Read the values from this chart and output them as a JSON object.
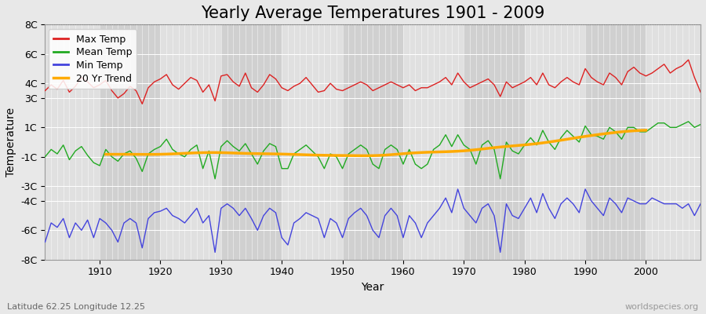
{
  "title": "Yearly Average Temperatures 1901 - 2009",
  "xlabel": "Year",
  "ylabel": "Temperature",
  "subtitle_left": "Latitude 62.25 Longitude 12.25",
  "subtitle_right": "worldspecies.org",
  "years": [
    1901,
    1902,
    1903,
    1904,
    1905,
    1906,
    1907,
    1908,
    1909,
    1910,
    1911,
    1912,
    1913,
    1914,
    1915,
    1916,
    1917,
    1918,
    1919,
    1920,
    1921,
    1922,
    1923,
    1924,
    1925,
    1926,
    1927,
    1928,
    1929,
    1930,
    1931,
    1932,
    1933,
    1934,
    1935,
    1936,
    1937,
    1938,
    1939,
    1940,
    1941,
    1942,
    1943,
    1944,
    1945,
    1946,
    1947,
    1948,
    1949,
    1950,
    1951,
    1952,
    1953,
    1954,
    1955,
    1956,
    1957,
    1958,
    1959,
    1960,
    1961,
    1962,
    1963,
    1964,
    1965,
    1966,
    1967,
    1968,
    1969,
    1970,
    1971,
    1972,
    1973,
    1974,
    1975,
    1976,
    1977,
    1978,
    1979,
    1980,
    1981,
    1982,
    1983,
    1984,
    1985,
    1986,
    1987,
    1988,
    1989,
    1990,
    1991,
    1992,
    1993,
    1994,
    1995,
    1996,
    1997,
    1998,
    1999,
    2000,
    2001,
    2002,
    2003,
    2004,
    2005,
    2006,
    2007,
    2008,
    2009
  ],
  "max_temp": [
    3.5,
    3.9,
    3.6,
    4.2,
    3.4,
    3.8,
    4.4,
    4.1,
    3.7,
    3.9,
    4.2,
    3.5,
    3.0,
    3.3,
    3.8,
    3.5,
    2.6,
    3.7,
    4.1,
    4.3,
    4.6,
    3.9,
    3.6,
    4.0,
    4.4,
    4.2,
    3.4,
    3.9,
    2.8,
    4.5,
    4.6,
    4.1,
    3.8,
    4.7,
    3.7,
    3.4,
    3.9,
    4.6,
    4.3,
    3.7,
    3.5,
    3.8,
    4.0,
    4.4,
    3.9,
    3.4,
    3.5,
    4.0,
    3.6,
    3.5,
    3.7,
    3.9,
    4.1,
    3.9,
    3.5,
    3.7,
    3.9,
    4.1,
    3.9,
    3.7,
    3.9,
    3.5,
    3.7,
    3.7,
    3.9,
    4.1,
    4.4,
    3.9,
    4.7,
    4.1,
    3.7,
    3.9,
    4.1,
    4.3,
    3.9,
    3.1,
    4.1,
    3.7,
    3.9,
    4.1,
    4.4,
    3.9,
    4.7,
    3.9,
    3.7,
    4.1,
    4.4,
    4.1,
    3.9,
    5.0,
    4.4,
    4.1,
    3.9,
    4.7,
    4.4,
    3.9,
    4.8,
    5.1,
    4.7,
    4.5,
    4.7,
    5.0,
    5.3,
    4.7,
    5.0,
    5.2,
    5.6,
    4.4,
    3.4
  ],
  "mean_temp": [
    -1.0,
    -0.5,
    -0.8,
    -0.2,
    -1.2,
    -0.6,
    -0.3,
    -0.9,
    -1.4,
    -1.6,
    -0.5,
    -1.0,
    -1.3,
    -0.8,
    -0.6,
    -1.1,
    -2.0,
    -0.8,
    -0.5,
    -0.3,
    0.2,
    -0.5,
    -0.8,
    -1.0,
    -0.5,
    -0.2,
    -1.8,
    -0.6,
    -2.5,
    -0.3,
    0.1,
    -0.3,
    -0.6,
    -0.1,
    -0.8,
    -1.5,
    -0.6,
    -0.1,
    -0.3,
    -1.8,
    -1.8,
    -0.8,
    -0.5,
    -0.2,
    -0.6,
    -1.0,
    -1.8,
    -0.8,
    -1.0,
    -1.8,
    -0.8,
    -0.5,
    -0.2,
    -0.5,
    -1.5,
    -1.8,
    -0.5,
    -0.2,
    -0.5,
    -1.5,
    -0.5,
    -1.5,
    -1.8,
    -1.5,
    -0.5,
    -0.2,
    0.5,
    -0.3,
    0.5,
    -0.2,
    -0.5,
    -1.5,
    -0.2,
    0.1,
    -0.5,
    -2.5,
    0.0,
    -0.6,
    -0.8,
    -0.2,
    0.3,
    -0.2,
    0.8,
    0.0,
    -0.5,
    0.3,
    0.8,
    0.4,
    0.0,
    1.1,
    0.5,
    0.4,
    0.2,
    1.0,
    0.7,
    0.2,
    1.0,
    1.0,
    0.7,
    0.7,
    1.0,
    1.3,
    1.3,
    1.0,
    1.0,
    1.2,
    1.4,
    1.0,
    1.2
  ],
  "min_temp": [
    -6.8,
    -5.5,
    -5.8,
    -5.2,
    -6.5,
    -5.5,
    -6.0,
    -5.3,
    -6.5,
    -5.2,
    -5.5,
    -6.0,
    -6.8,
    -5.5,
    -5.2,
    -5.5,
    -7.2,
    -5.2,
    -4.8,
    -4.7,
    -4.5,
    -5.0,
    -5.2,
    -5.5,
    -5.0,
    -4.5,
    -5.5,
    -5.0,
    -7.5,
    -4.5,
    -4.2,
    -4.5,
    -5.0,
    -4.5,
    -5.2,
    -6.0,
    -5.0,
    -4.5,
    -4.8,
    -6.5,
    -7.0,
    -5.5,
    -5.2,
    -4.8,
    -5.0,
    -5.2,
    -6.5,
    -5.2,
    -5.5,
    -6.5,
    -5.2,
    -4.8,
    -4.5,
    -5.0,
    -6.0,
    -6.5,
    -5.0,
    -4.5,
    -5.0,
    -6.5,
    -5.0,
    -5.5,
    -6.5,
    -5.5,
    -5.0,
    -4.5,
    -3.8,
    -4.8,
    -3.2,
    -4.5,
    -5.0,
    -5.5,
    -4.5,
    -4.2,
    -5.0,
    -7.5,
    -4.2,
    -5.0,
    -5.2,
    -4.5,
    -3.8,
    -4.8,
    -3.5,
    -4.5,
    -5.2,
    -4.2,
    -3.8,
    -4.2,
    -4.8,
    -3.2,
    -4.0,
    -4.5,
    -5.0,
    -3.8,
    -4.2,
    -4.8,
    -3.8,
    -4.0,
    -4.2,
    -4.2,
    -3.8,
    -4.0,
    -4.2,
    -4.2,
    -4.2,
    -4.5,
    -4.2,
    -5.0,
    -4.2
  ],
  "ylim": [
    -8,
    8
  ],
  "yticks": [
    -8,
    -6,
    -4,
    -3,
    -1,
    1,
    3,
    4,
    6,
    8
  ],
  "ytick_labels": [
    "-8C",
    "-6C",
    "-4C",
    "-3C",
    "-1C",
    "1C",
    "3C",
    "4C",
    "6C",
    "8C"
  ],
  "bg_color": "#e8e8e8",
  "band_colors": [
    "#e0e0e0",
    "#d0d0d0"
  ],
  "grid_color": "#ffffff",
  "max_color": "#dd2222",
  "mean_color": "#22aa22",
  "min_color": "#4444dd",
  "trend_color": "#ffaa00",
  "title_fontsize": 15,
  "axis_fontsize": 9,
  "legend_fontsize": 9
}
